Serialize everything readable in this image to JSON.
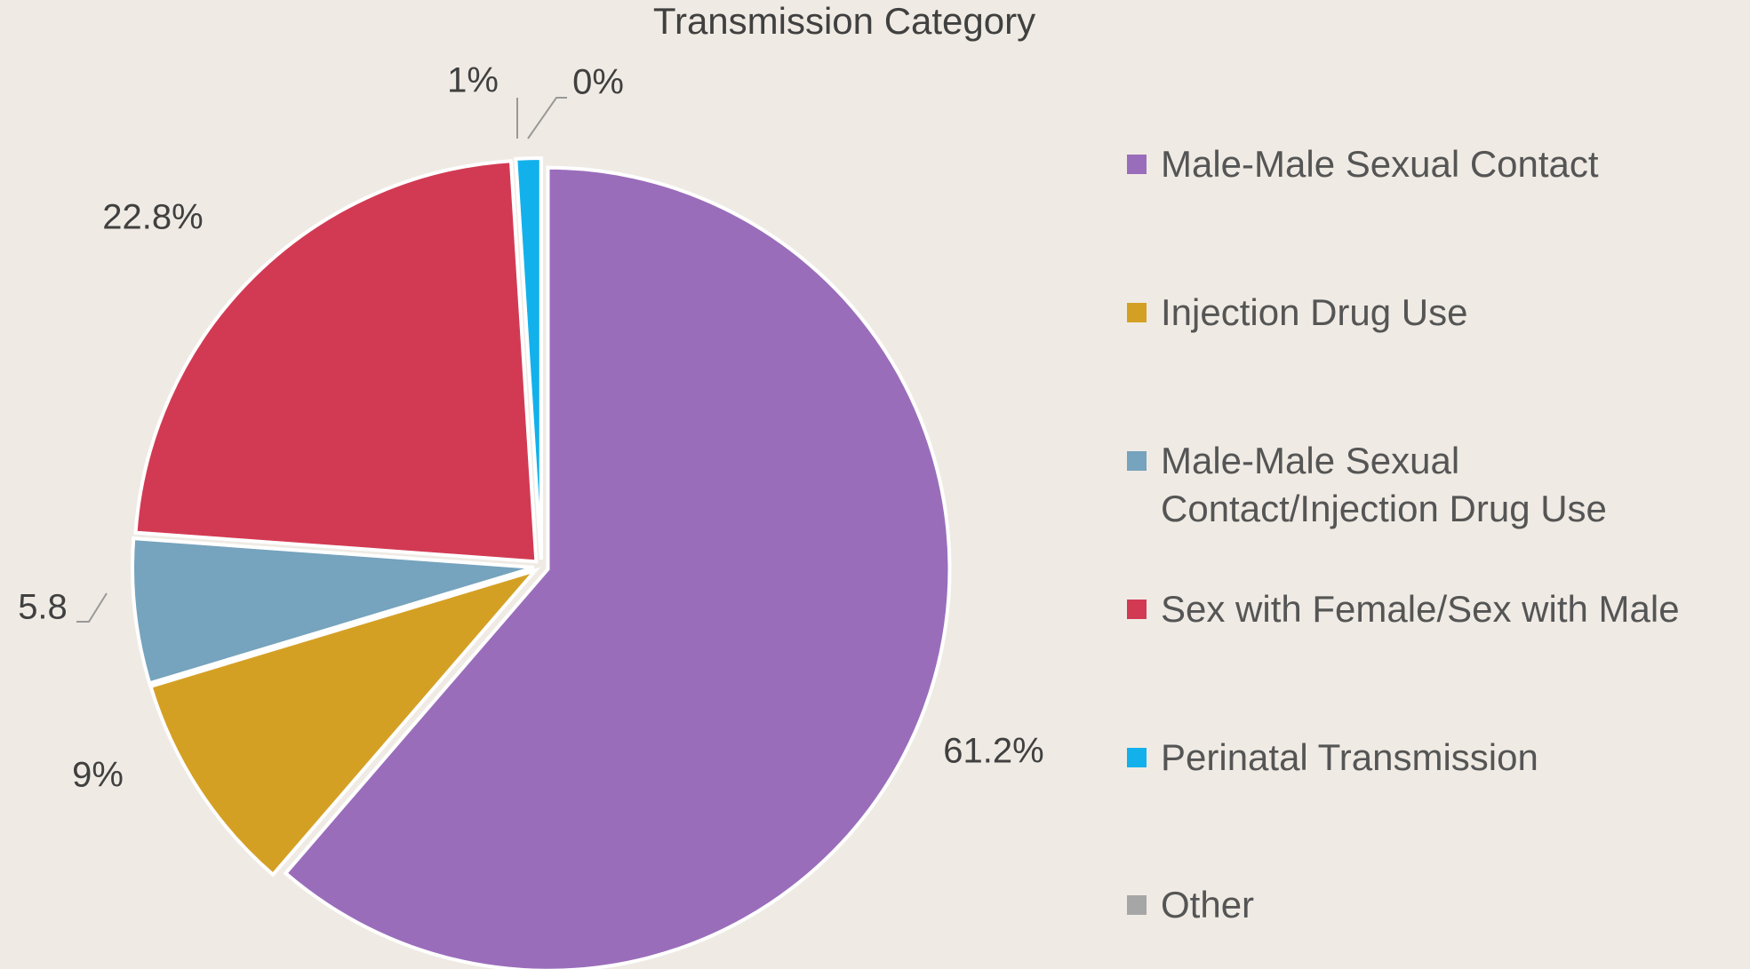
{
  "chart_data": {
    "type": "pie",
    "title": "Transmission Category",
    "categories": [
      "Male-Male Sexual Contact",
      "Injection Drug Use",
      "Male-Male Sexual Contact/Injection Drug Use",
      "Sex with Female/Sex with Male",
      "Perinatal Transmission",
      "Other"
    ],
    "values": [
      61.2,
      9,
      5.8,
      22.8,
      1,
      0
    ],
    "value_labels": [
      "61.2%",
      "9%",
      "5.8",
      "22.8%",
      "1%",
      "0%"
    ],
    "colors": [
      "#9a6dbb",
      "#d4a024",
      "#76a3bd",
      "#d23a53",
      "#12b1eb",
      "#a6a6a6"
    ],
    "legend": "right"
  }
}
